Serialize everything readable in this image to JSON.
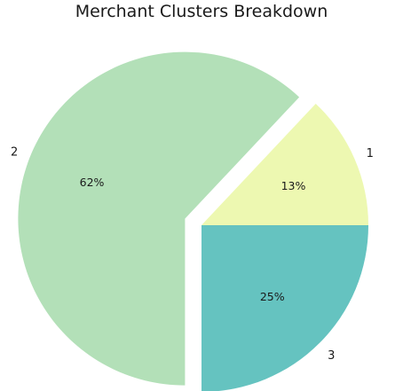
{
  "chart_data": {
    "type": "pie",
    "title": "Merchant Clusters Breakdown",
    "labels": [
      "1",
      "2",
      "3"
    ],
    "values": [
      13,
      62,
      25
    ],
    "percent_labels": [
      "13%",
      "62%",
      "25%"
    ],
    "colors": [
      "#edf8b1",
      "#b3e0b8",
      "#65c3c0"
    ],
    "exploded": [
      false,
      true,
      false
    ],
    "start_angle_deg": 0,
    "direction": "counterclockwise",
    "legend": "none"
  }
}
